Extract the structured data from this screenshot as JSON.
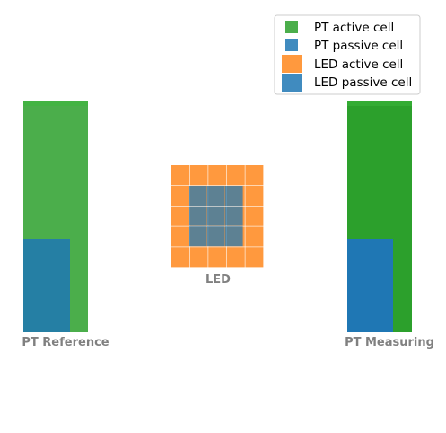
{
  "colors": {
    "pt_active": "#2ca02c",
    "pt_passive": "#1f77b4",
    "led_active": "#ff7f0e",
    "led_passive": "#1f77b4"
  },
  "legend": {
    "items": [
      {
        "label": "PT active cell",
        "color": "#2ca02c",
        "marker": "small-square"
      },
      {
        "label": "PT passive cell",
        "color": "#1f77b4",
        "marker": "small-square"
      },
      {
        "label": "LED active cell",
        "color": "#ff7f0e",
        "marker": "large-square"
      },
      {
        "label": "LED passive cell",
        "color": "#1f77b4",
        "marker": "large-square"
      }
    ]
  },
  "components": {
    "pt_reference": {
      "label": "PT Reference"
    },
    "led": {
      "label": "LED"
    },
    "pt_measuring": {
      "label": "PT Measuring"
    }
  }
}
